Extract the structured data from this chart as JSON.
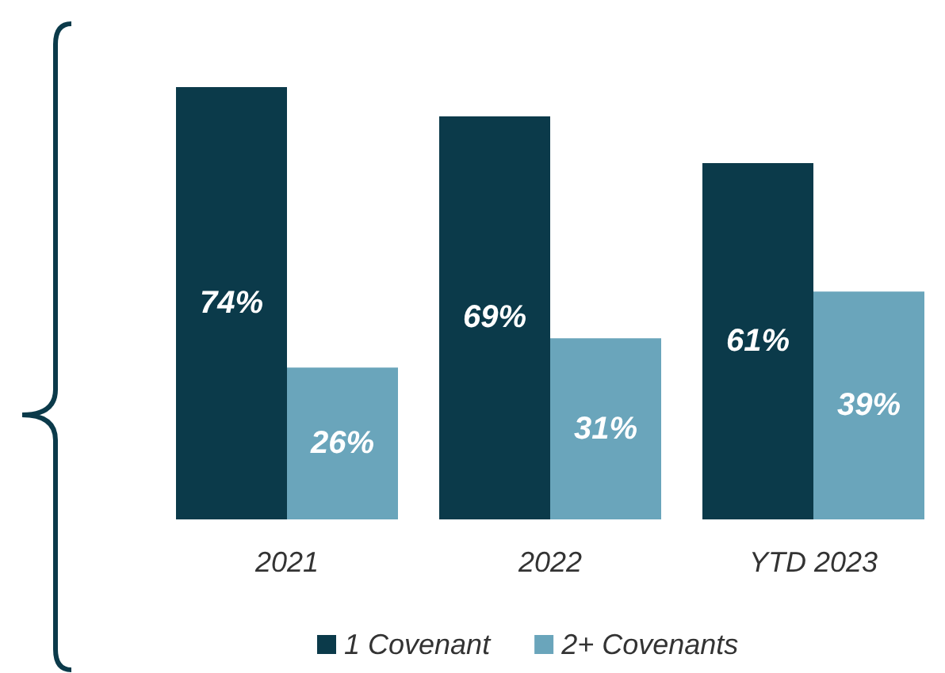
{
  "chart_data": {
    "type": "bar",
    "categories": [
      "2021",
      "2022",
      "YTD 2023"
    ],
    "series": [
      {
        "name": "1 Covenant",
        "color": "#0b3a4a",
        "values": [
          74,
          69,
          61
        ],
        "value_labels": [
          "74%",
          "69%",
          "61%"
        ]
      },
      {
        "name": "2+ Covenants",
        "color": "#6aa5bb",
        "values": [
          26,
          31,
          39
        ],
        "value_labels": [
          "26%",
          "31%",
          "39%"
        ]
      }
    ],
    "legend": "bottom"
  }
}
